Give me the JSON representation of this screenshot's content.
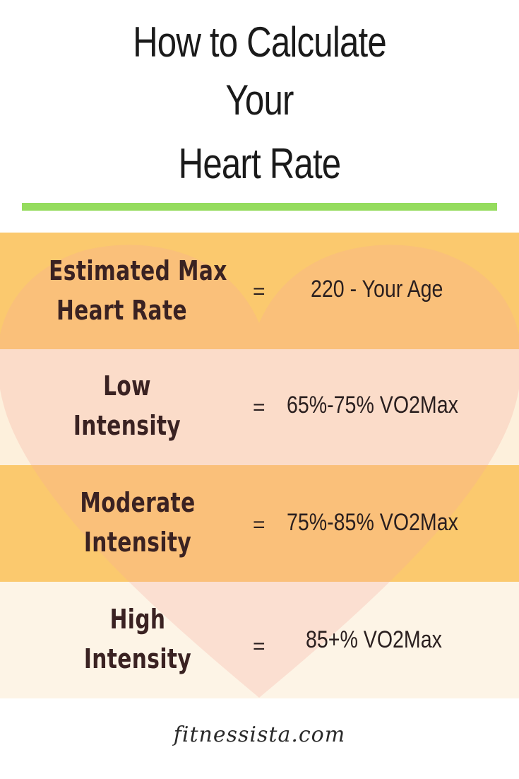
{
  "title": {
    "line1": "How to Calculate",
    "line2": "Your",
    "line3": "Heart Rate"
  },
  "colors": {
    "divider": "#95dc5e",
    "row_orange": "#fbc96e",
    "row_pink": "#fde8e4",
    "row_cream": "#fdf4e6",
    "heart": "#f9b8a9",
    "text_dark": "#3a2222"
  },
  "rows": [
    {
      "label_line1": "Estimated Max",
      "label_line2": "Heart Rate",
      "equals": "=",
      "value": "220 - Your Age"
    },
    {
      "label_line1": "Low",
      "label_line2": "Intensity",
      "equals": "=",
      "value": "65%-75% VO2Max"
    },
    {
      "label_line1": "Moderate",
      "label_line2": "Intensity",
      "equals": "=",
      "value": "75%-85% VO2Max"
    },
    {
      "label_line1": "High",
      "label_line2": "Intensity",
      "equals": "=",
      "value": "85+% VO2Max"
    }
  ],
  "footer": {
    "site": "fitnessista.com"
  }
}
